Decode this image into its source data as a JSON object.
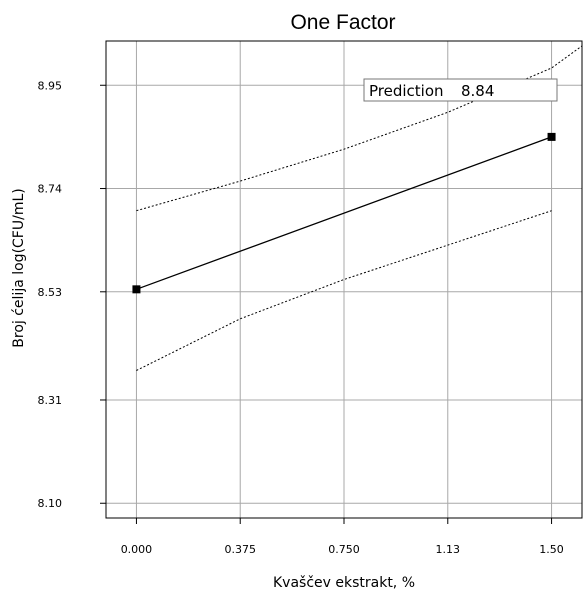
{
  "chart_data": {
    "type": "line",
    "title": "One Factor",
    "xlabel": "Kvaščev ekstrakt, %",
    "ylabel": "Broj ćelija log(CFU/mL)",
    "xlim": [
      -0.11,
      1.61
    ],
    "ylim": [
      8.07,
      9.04
    ],
    "x_ticks": [
      {
        "value": 0.0,
        "label": "0.000"
      },
      {
        "value": 0.375,
        "label": "0.375"
      },
      {
        "value": 0.75,
        "label": "0.750"
      },
      {
        "value": 1.125,
        "label": "1.13"
      },
      {
        "value": 1.5,
        "label": "1.50"
      }
    ],
    "y_ticks": [
      {
        "value": 8.1,
        "label": "8.10"
      },
      {
        "value": 8.31,
        "label": "8.31"
      },
      {
        "value": 8.53,
        "label": "8.53"
      },
      {
        "value": 8.74,
        "label": "8.74"
      },
      {
        "value": 8.95,
        "label": "8.95"
      }
    ],
    "grid": true,
    "series": [
      {
        "role": "prediction",
        "style": "solid",
        "x": [
          0.0,
          1.5
        ],
        "y": [
          8.535,
          8.845
        ]
      },
      {
        "role": "upper-bound",
        "style": "dotted",
        "x": [
          0.0,
          0.375,
          0.75,
          1.125,
          1.5,
          1.61
        ],
        "y": [
          8.695,
          8.755,
          8.82,
          8.895,
          8.985,
          9.03
        ]
      },
      {
        "role": "lower-bound",
        "style": "dotted",
        "x": [
          0.0,
          0.375,
          0.75,
          1.125,
          1.5
        ],
        "y": [
          8.37,
          8.475,
          8.555,
          8.625,
          8.695
        ]
      }
    ],
    "design_points": [
      {
        "x": 0.0,
        "y": 8.535
      },
      {
        "x": 1.5,
        "y": 8.845
      }
    ],
    "annotation": {
      "label": "Prediction",
      "value": "8.84"
    }
  }
}
